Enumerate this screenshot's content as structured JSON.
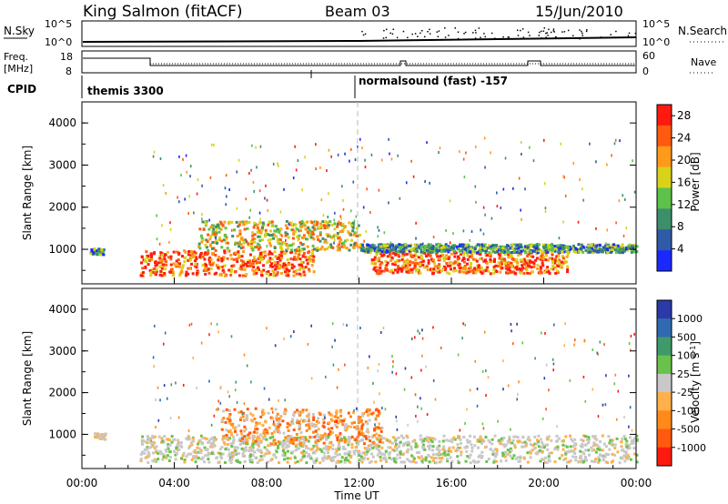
{
  "header": {
    "station": "King Salmon (fitACF)",
    "beam": "Beam 03",
    "date": "15/Jun/2010"
  },
  "top_panels": {
    "nsky_label": "N.Sky",
    "nsky_ticks": [
      "10^5",
      "10^0"
    ],
    "nsearch_label": "N.Search",
    "nsearch_ticks": [
      "10^5",
      "10^0"
    ],
    "freq_label": "Freq.",
    "freq_unit": "[MHz]",
    "freq_ticks": [
      "18",
      "8"
    ],
    "nave_label": "Nave",
    "nave_ticks": [
      "60",
      "0"
    ],
    "cpid_label": "CPID",
    "cpid_segments": [
      {
        "label": "themis 3300",
        "start_hour": 0
      },
      {
        "label": "normalsound (fast) -157",
        "start_hour": 12
      }
    ]
  },
  "chart_data": [
    {
      "type": "heatmap",
      "panel": "power",
      "xlabel": "",
      "ylabel": "Slant Range [km]",
      "x_range_hours": [
        0,
        24
      ],
      "ylim": [
        180,
        4500
      ],
      "y_ticks": [
        "1000",
        "2000",
        "3000",
        "4000"
      ],
      "colorbar": {
        "label": "Power [dB]",
        "ticks": [
          "4",
          "8",
          "12",
          "16",
          "20",
          "24",
          "28"
        ],
        "range": [
          0,
          30
        ],
        "colors": [
          "#1a2aff",
          "#2f5aa8",
          "#3d8f6a",
          "#5cc24a",
          "#d9d21a",
          "#ff9a1a",
          "#ff5a10",
          "#ff1a10"
        ]
      },
      "description_bands": [
        {
          "hours": [
            0.3,
            0.9
          ],
          "range_km": [
            900,
            1050
          ],
          "level": "low"
        },
        {
          "hours": [
            2.5,
            10
          ],
          "range_km": [
            400,
            1000
          ],
          "level": "high"
        },
        {
          "hours": [
            5,
            12
          ],
          "range_km": [
            1000,
            1700
          ],
          "level": "mid"
        },
        {
          "hours": [
            12.5,
            21
          ],
          "range_km": [
            450,
            950
          ],
          "level": "high"
        },
        {
          "hours": [
            12,
            24
          ],
          "range_km": [
            950,
            1150
          ],
          "level": "low"
        }
      ]
    },
    {
      "type": "heatmap",
      "panel": "velocity",
      "xlabel": "Time UT",
      "ylabel": "Slant Range [km]",
      "x_range_hours": [
        0,
        24
      ],
      "ylim": [
        180,
        4500
      ],
      "y_ticks": [
        "1000",
        "2000",
        "3000",
        "4000"
      ],
      "x_ticks": [
        "00:00",
        "04:00",
        "08:00",
        "12:00",
        "16:00",
        "20:00",
        "00:00"
      ],
      "colorbar": {
        "label": "Velocity [m s",
        "label_sup": "-1",
        "label_end": "]",
        "ticks": [
          "1000",
          "500",
          "100",
          "25",
          "-25",
          "-100",
          "-500",
          "-1000"
        ],
        "colors": [
          "#2a3aa8",
          "#2f6ab0",
          "#3f9a6a",
          "#69c24a",
          "#c8c8c8",
          "#ffb04a",
          "#ff8a1a",
          "#ff5a10",
          "#ff1a10"
        ]
      }
    }
  ]
}
